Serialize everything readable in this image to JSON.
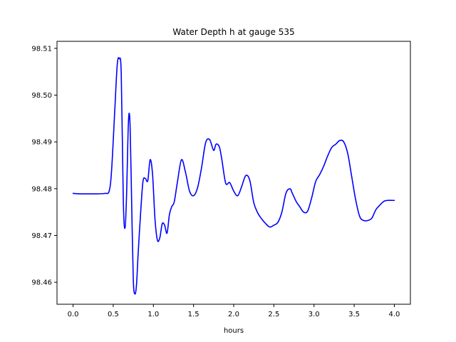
{
  "chart_data": {
    "type": "line",
    "title": "Water Depth h at gauge 535",
    "xlabel": "hours",
    "ylabel": "",
    "xlim": [
      -0.2,
      4.2
    ],
    "ylim": [
      98.4553,
      98.5115
    ],
    "grid": false,
    "legend": "none",
    "x_ticks": [
      {
        "value": 0.0,
        "label": "0.0"
      },
      {
        "value": 0.5,
        "label": "0.5"
      },
      {
        "value": 1.0,
        "label": "1.0"
      },
      {
        "value": 1.5,
        "label": "1.5"
      },
      {
        "value": 2.0,
        "label": "2.0"
      },
      {
        "value": 2.5,
        "label": "2.5"
      },
      {
        "value": 3.0,
        "label": "3.0"
      },
      {
        "value": 3.5,
        "label": "3.5"
      },
      {
        "value": 4.0,
        "label": "4.0"
      }
    ],
    "y_ticks": [
      {
        "value": 98.46,
        "label": "98.46"
      },
      {
        "value": 98.47,
        "label": "98.47"
      },
      {
        "value": 98.48,
        "label": "98.48"
      },
      {
        "value": 98.49,
        "label": "98.49"
      },
      {
        "value": 98.5,
        "label": "98.50"
      },
      {
        "value": 98.51,
        "label": "98.51"
      }
    ],
    "series": [
      {
        "color": "#0000ff",
        "x": [
          0.0,
          0.1,
          0.2,
          0.3,
          0.4,
          0.45,
          0.48,
          0.52,
          0.55,
          0.575,
          0.6,
          0.625,
          0.645,
          0.665,
          0.69,
          0.71,
          0.73,
          0.75,
          0.77,
          0.79,
          0.81,
          0.84,
          0.87,
          0.9,
          0.93,
          0.96,
          0.99,
          1.02,
          1.05,
          1.08,
          1.11,
          1.14,
          1.17,
          1.2,
          1.23,
          1.26,
          1.3,
          1.35,
          1.4,
          1.45,
          1.5,
          1.55,
          1.6,
          1.65,
          1.7,
          1.75,
          1.78,
          1.82,
          1.85,
          1.9,
          1.95,
          2.0,
          2.05,
          2.1,
          2.15,
          2.2,
          2.25,
          2.3,
          2.35,
          2.4,
          2.45,
          2.5,
          2.55,
          2.6,
          2.65,
          2.7,
          2.73,
          2.78,
          2.82,
          2.87,
          2.92,
          2.97,
          3.02,
          3.07,
          3.12,
          3.17,
          3.22,
          3.27,
          3.32,
          3.37,
          3.42,
          3.47,
          3.52,
          3.57,
          3.62,
          3.67,
          3.72,
          3.77,
          3.82,
          3.87,
          3.92,
          3.97,
          4.0
        ],
        "y": [
          98.479,
          98.4789,
          98.4789,
          98.4789,
          98.479,
          98.4795,
          98.484,
          98.497,
          98.5065,
          98.5078,
          98.5045,
          98.478,
          98.4715,
          98.478,
          98.4945,
          98.4935,
          98.4765,
          98.4605,
          98.4575,
          98.4595,
          98.466,
          98.4745,
          98.4815,
          98.4822,
          98.4817,
          98.4862,
          98.483,
          98.4735,
          98.469,
          98.4695,
          98.4725,
          98.4722,
          98.4705,
          98.4745,
          98.4762,
          98.4772,
          98.4815,
          98.4862,
          98.4835,
          98.4795,
          98.4785,
          98.4802,
          98.4845,
          98.4898,
          98.4905,
          98.4882,
          98.4895,
          98.489,
          98.4865,
          98.4812,
          98.4813,
          98.4795,
          98.4785,
          98.4805,
          98.4828,
          98.4818,
          98.477,
          98.4748,
          98.4735,
          98.4725,
          98.4718,
          98.4722,
          98.4728,
          98.475,
          98.479,
          98.48,
          98.479,
          98.4772,
          98.4762,
          98.475,
          98.4752,
          98.478,
          98.4815,
          98.483,
          98.4848,
          98.487,
          98.4888,
          98.4895,
          98.4903,
          98.49,
          98.4875,
          98.4825,
          98.4775,
          98.474,
          98.4732,
          98.4732,
          98.4737,
          98.4755,
          98.4765,
          98.4773,
          98.4775,
          98.4775,
          98.4775
        ]
      }
    ]
  }
}
